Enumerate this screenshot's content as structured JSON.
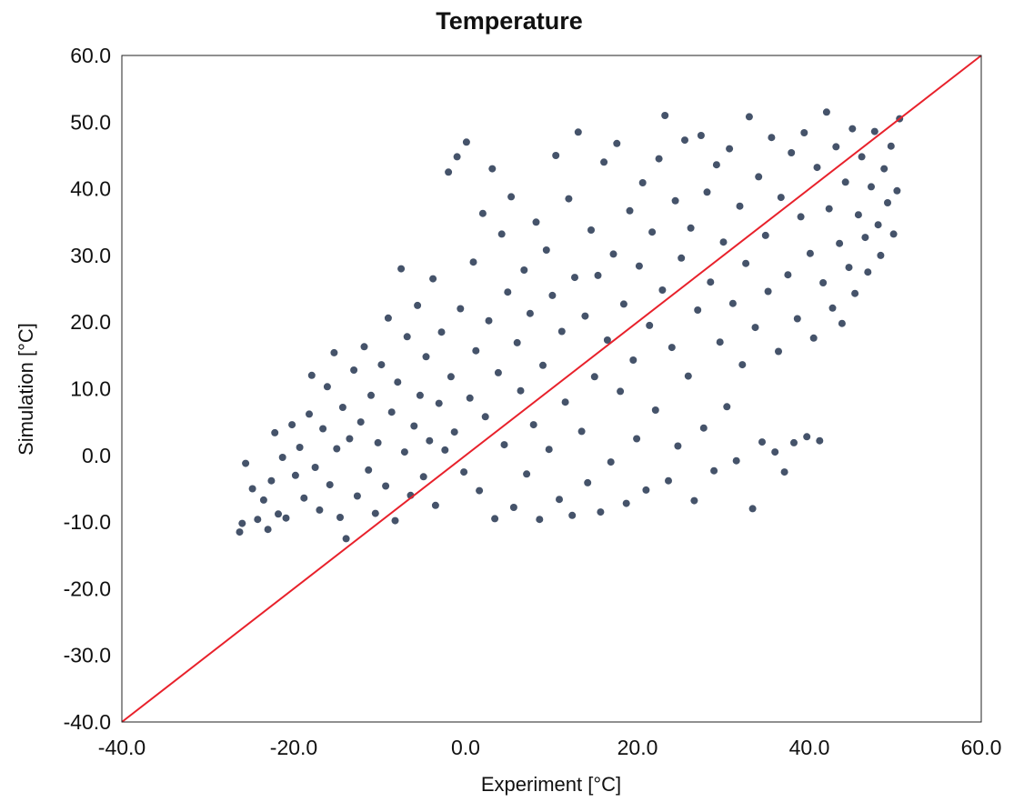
{
  "chart_data": {
    "type": "scatter",
    "title": "Temperature",
    "xlabel": "Experiment [°C]",
    "ylabel": "Simulation [°C]",
    "xlim": [
      -40,
      60
    ],
    "ylim": [
      -40,
      60
    ],
    "x_ticks": [
      "-40.0",
      "-20.0",
      "0.0",
      "20.0",
      "40.0",
      "60.0"
    ],
    "y_ticks": [
      "-40.0",
      "-30.0",
      "-20.0",
      "-10.0",
      "0.0",
      "10.0",
      "20.0",
      "30.0",
      "40.0",
      "50.0",
      "60.0"
    ],
    "grid": false,
    "legend": "none",
    "colors": {
      "points": "#45536a",
      "reference_line": "#e8212b"
    },
    "reference_line": {
      "from": [
        -40,
        -40
      ],
      "to": [
        60,
        60
      ]
    },
    "series": [
      {
        "points": [
          [
            -26.3,
            -11.5
          ],
          [
            -26.0,
            -10.2
          ],
          [
            -25.6,
            -1.2
          ],
          [
            -24.8,
            -5.0
          ],
          [
            -24.2,
            -9.6
          ],
          [
            -23.5,
            -6.7
          ],
          [
            -23.0,
            -11.1
          ],
          [
            -22.6,
            -3.8
          ],
          [
            -22.2,
            3.4
          ],
          [
            -21.8,
            -8.8
          ],
          [
            -21.3,
            -0.3
          ],
          [
            -20.9,
            -9.4
          ],
          [
            -20.2,
            4.6
          ],
          [
            -19.8,
            -3.0
          ],
          [
            -19.3,
            1.2
          ],
          [
            -18.8,
            -6.4
          ],
          [
            -18.2,
            6.2
          ],
          [
            -17.9,
            12.0
          ],
          [
            -17.5,
            -1.8
          ],
          [
            -17.0,
            -8.2
          ],
          [
            -16.6,
            4.0
          ],
          [
            -16.1,
            10.3
          ],
          [
            -15.8,
            -4.4
          ],
          [
            -15.3,
            15.4
          ],
          [
            -15.0,
            1.0
          ],
          [
            -14.6,
            -9.3
          ],
          [
            -14.3,
            7.2
          ],
          [
            -13.9,
            -12.5
          ],
          [
            -13.5,
            2.5
          ],
          [
            -13.0,
            12.8
          ],
          [
            -12.6,
            -6.1
          ],
          [
            -12.2,
            5.0
          ],
          [
            -11.8,
            16.3
          ],
          [
            -11.3,
            -2.2
          ],
          [
            -11.0,
            9.0
          ],
          [
            -10.5,
            -8.7
          ],
          [
            -10.2,
            1.9
          ],
          [
            -9.8,
            13.6
          ],
          [
            -9.3,
            -4.6
          ],
          [
            -9.0,
            20.6
          ],
          [
            -8.6,
            6.5
          ],
          [
            -8.2,
            -9.8
          ],
          [
            -7.9,
            11.0
          ],
          [
            -7.5,
            28.0
          ],
          [
            -7.1,
            0.5
          ],
          [
            -6.8,
            17.8
          ],
          [
            -6.4,
            -6.0
          ],
          [
            -6.0,
            4.4
          ],
          [
            -5.6,
            22.5
          ],
          [
            -5.3,
            9.0
          ],
          [
            -4.9,
            -3.2
          ],
          [
            -4.6,
            14.8
          ],
          [
            -4.2,
            2.2
          ],
          [
            -3.8,
            26.5
          ],
          [
            -3.5,
            -7.5
          ],
          [
            -3.1,
            7.8
          ],
          [
            -2.8,
            18.5
          ],
          [
            -2.4,
            0.8
          ],
          [
            -2.0,
            42.5
          ],
          [
            -1.7,
            11.8
          ],
          [
            -1.3,
            3.5
          ],
          [
            -1.0,
            44.8
          ],
          [
            -0.6,
            22.0
          ],
          [
            -0.2,
            -2.5
          ],
          [
            0.1,
            47.0
          ],
          [
            0.5,
            8.6
          ],
          [
            0.9,
            29.0
          ],
          [
            1.2,
            15.7
          ],
          [
            1.6,
            -5.3
          ],
          [
            2.0,
            36.3
          ],
          [
            2.3,
            5.8
          ],
          [
            2.7,
            20.2
          ],
          [
            3.1,
            43.0
          ],
          [
            3.4,
            -9.5
          ],
          [
            3.8,
            12.4
          ],
          [
            4.2,
            33.2
          ],
          [
            4.5,
            1.6
          ],
          [
            4.9,
            24.5
          ],
          [
            5.3,
            38.8
          ],
          [
            5.6,
            -7.8
          ],
          [
            6.0,
            16.9
          ],
          [
            6.4,
            9.7
          ],
          [
            6.8,
            27.8
          ],
          [
            7.1,
            -2.8
          ],
          [
            7.5,
            21.3
          ],
          [
            7.9,
            4.6
          ],
          [
            8.2,
            35.0
          ],
          [
            8.6,
            -9.6
          ],
          [
            9.0,
            13.5
          ],
          [
            9.4,
            30.8
          ],
          [
            9.7,
            0.9
          ],
          [
            10.1,
            24.0
          ],
          [
            10.5,
            45.0
          ],
          [
            10.9,
            -6.6
          ],
          [
            11.2,
            18.6
          ],
          [
            11.6,
            8.0
          ],
          [
            12.0,
            38.5
          ],
          [
            12.4,
            -9.0
          ],
          [
            12.7,
            26.7
          ],
          [
            13.1,
            48.5
          ],
          [
            13.5,
            3.6
          ],
          [
            13.9,
            20.9
          ],
          [
            14.2,
            -4.1
          ],
          [
            14.6,
            33.8
          ],
          [
            15.0,
            11.8
          ],
          [
            15.4,
            27.0
          ],
          [
            15.7,
            -8.5
          ],
          [
            16.1,
            44.0
          ],
          [
            16.5,
            17.3
          ],
          [
            16.9,
            -1.0
          ],
          [
            17.2,
            30.2
          ],
          [
            17.6,
            46.8
          ],
          [
            18.0,
            9.6
          ],
          [
            18.4,
            22.7
          ],
          [
            18.7,
            -7.2
          ],
          [
            19.1,
            36.7
          ],
          [
            19.5,
            14.3
          ],
          [
            19.9,
            2.5
          ],
          [
            20.2,
            28.4
          ],
          [
            20.6,
            40.9
          ],
          [
            21.0,
            -5.2
          ],
          [
            21.4,
            19.5
          ],
          [
            21.7,
            33.5
          ],
          [
            22.1,
            6.8
          ],
          [
            22.5,
            44.5
          ],
          [
            22.9,
            24.8
          ],
          [
            23.2,
            51.0
          ],
          [
            23.6,
            -3.8
          ],
          [
            24.0,
            16.2
          ],
          [
            24.4,
            38.2
          ],
          [
            24.7,
            1.4
          ],
          [
            25.1,
            29.6
          ],
          [
            25.5,
            47.3
          ],
          [
            25.9,
            11.9
          ],
          [
            26.2,
            34.1
          ],
          [
            26.6,
            -6.8
          ],
          [
            27.0,
            21.8
          ],
          [
            27.4,
            48.0
          ],
          [
            27.7,
            4.1
          ],
          [
            28.1,
            39.5
          ],
          [
            28.5,
            26.0
          ],
          [
            28.9,
            -2.3
          ],
          [
            29.2,
            43.6
          ],
          [
            29.6,
            17.0
          ],
          [
            30.0,
            32.0
          ],
          [
            30.4,
            7.3
          ],
          [
            30.7,
            46.0
          ],
          [
            31.1,
            22.8
          ],
          [
            31.5,
            -0.8
          ],
          [
            31.9,
            37.4
          ],
          [
            32.2,
            13.6
          ],
          [
            32.6,
            28.8
          ],
          [
            33.0,
            50.8
          ],
          [
            33.4,
            -8.0
          ],
          [
            33.7,
            19.2
          ],
          [
            34.1,
            41.8
          ],
          [
            34.5,
            2.0
          ],
          [
            34.9,
            33.0
          ],
          [
            35.2,
            24.6
          ],
          [
            35.6,
            47.7
          ],
          [
            36.0,
            0.5
          ],
          [
            36.4,
            15.6
          ],
          [
            36.7,
            38.7
          ],
          [
            37.1,
            -2.5
          ],
          [
            37.5,
            27.1
          ],
          [
            37.9,
            45.4
          ],
          [
            38.2,
            1.9
          ],
          [
            38.6,
            20.5
          ],
          [
            39.0,
            35.8
          ],
          [
            39.4,
            48.4
          ],
          [
            39.7,
            2.8
          ],
          [
            40.1,
            30.3
          ],
          [
            40.5,
            17.6
          ],
          [
            40.9,
            43.2
          ],
          [
            41.2,
            2.2
          ],
          [
            41.6,
            25.9
          ],
          [
            42.0,
            51.5
          ],
          [
            42.3,
            37.0
          ],
          [
            42.7,
            22.1
          ],
          [
            43.1,
            46.3
          ],
          [
            43.5,
            31.8
          ],
          [
            43.8,
            19.8
          ],
          [
            44.2,
            41.0
          ],
          [
            44.6,
            28.2
          ],
          [
            45.0,
            49.0
          ],
          [
            45.3,
            24.3
          ],
          [
            45.7,
            36.1
          ],
          [
            46.1,
            44.8
          ],
          [
            46.5,
            32.7
          ],
          [
            46.8,
            27.5
          ],
          [
            47.2,
            40.3
          ],
          [
            47.6,
            48.6
          ],
          [
            48.0,
            34.6
          ],
          [
            48.3,
            30.0
          ],
          [
            48.7,
            43.0
          ],
          [
            49.1,
            37.9
          ],
          [
            49.5,
            46.4
          ],
          [
            49.8,
            33.2
          ],
          [
            50.2,
            39.7
          ],
          [
            50.5,
            50.5
          ]
        ]
      }
    ]
  }
}
